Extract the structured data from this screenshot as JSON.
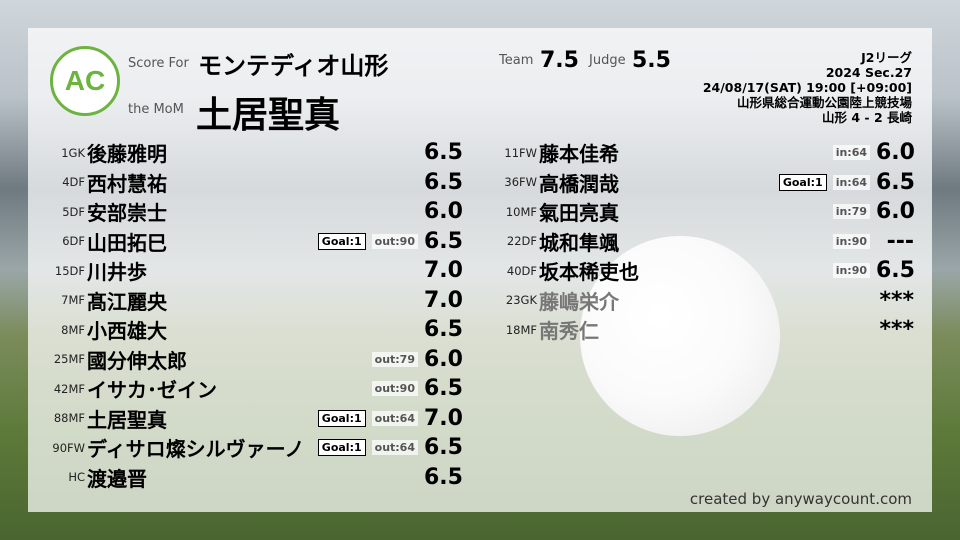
{
  "header": {
    "score_for_label": "Score For",
    "mom_label": "the MoM",
    "team": "モンテディオ山形",
    "mom": "土居聖真",
    "team_label": "Team",
    "team_score": "7.5",
    "judge_label": "Judge",
    "judge_score": "5.5",
    "logo_text": "AC"
  },
  "match": {
    "league": "J2リーグ",
    "section": "2024 Sec.27",
    "datetime": "24/08/17(SAT) 19:00 [+09:00]",
    "venue": "山形県総合運動公園陸上競技場",
    "result": "山形 4 - 2 長崎"
  },
  "left": [
    {
      "pos": "1GK",
      "name": "後藤雅明",
      "goal": "",
      "sub": "",
      "rate": "6.5"
    },
    {
      "pos": "4DF",
      "name": "西村慧祐",
      "goal": "",
      "sub": "",
      "rate": "6.5"
    },
    {
      "pos": "5DF",
      "name": "安部崇士",
      "goal": "",
      "sub": "",
      "rate": "6.0"
    },
    {
      "pos": "6DF",
      "name": "山田拓巳",
      "goal": "Goal:1",
      "sub": "out:90",
      "rate": "6.5"
    },
    {
      "pos": "15DF",
      "name": "川井歩",
      "goal": "",
      "sub": "",
      "rate": "7.0"
    },
    {
      "pos": "7MF",
      "name": "髙江麗央",
      "goal": "",
      "sub": "",
      "rate": "7.0"
    },
    {
      "pos": "8MF",
      "name": "小西雄大",
      "goal": "",
      "sub": "",
      "rate": "6.5"
    },
    {
      "pos": "25MF",
      "name": "國分伸太郎",
      "goal": "",
      "sub": "out:79",
      "rate": "6.0"
    },
    {
      "pos": "42MF",
      "name": "イサカ･ゼイン",
      "goal": "",
      "sub": "out:90",
      "rate": "6.5"
    },
    {
      "pos": "88MF",
      "name": "土居聖真",
      "goal": "Goal:1",
      "sub": "out:64",
      "rate": "7.0"
    },
    {
      "pos": "90FW",
      "name": "ディサロ燦シルヴァーノ",
      "goal": "Goal:1",
      "sub": "out:64",
      "rate": "6.5"
    },
    {
      "pos": "HC",
      "name": "渡邉晋",
      "goal": "",
      "sub": "",
      "rate": "6.5"
    }
  ],
  "right": [
    {
      "pos": "11FW",
      "name": "藤本佳希",
      "goal": "",
      "sub": "in:64",
      "rate": "6.0"
    },
    {
      "pos": "36FW",
      "name": "高橋潤哉",
      "goal": "Goal:1",
      "sub": "in:64",
      "rate": "6.5"
    },
    {
      "pos": "10MF",
      "name": "氣田亮真",
      "goal": "",
      "sub": "in:79",
      "rate": "6.0"
    },
    {
      "pos": "22DF",
      "name": "城和隼颯",
      "goal": "",
      "sub": "in:90",
      "rate": "---"
    },
    {
      "pos": "40DF",
      "name": "坂本稀吏也",
      "goal": "",
      "sub": "in:90",
      "rate": "6.5"
    },
    {
      "pos": "23GK",
      "name": "藤嶋栄介",
      "goal": "",
      "sub": "",
      "rate": "***",
      "unused": true
    },
    {
      "pos": "18MF",
      "name": "南秀仁",
      "goal": "",
      "sub": "",
      "rate": "***",
      "unused": true
    }
  ],
  "credit": "created by anywaycount.com"
}
